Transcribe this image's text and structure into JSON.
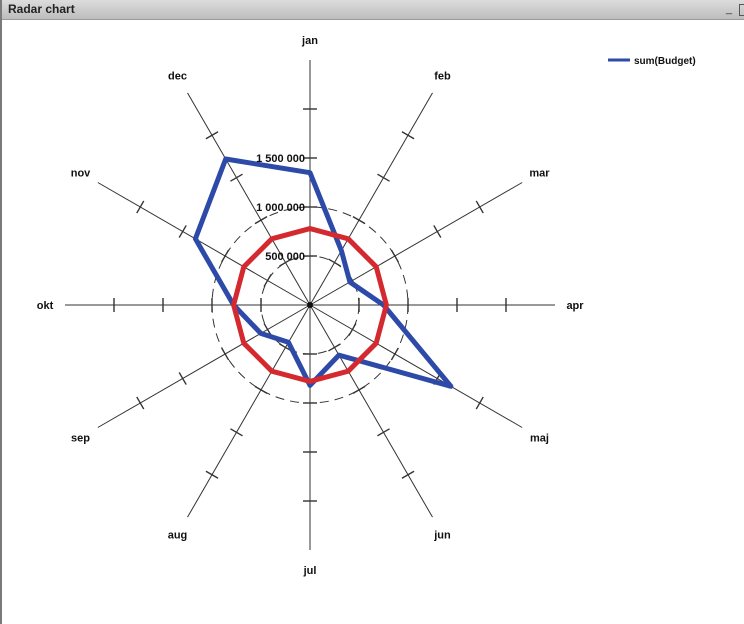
{
  "window": {
    "title": "Radar chart",
    "minimize_icon": "minimize-icon",
    "maximize_icon": "maximize-icon"
  },
  "chart_data": {
    "type": "radar",
    "categories": [
      "jan",
      "feb",
      "mar",
      "apr",
      "maj",
      "jun",
      "jul",
      "aug",
      "sep",
      "okt",
      "nov",
      "dec"
    ],
    "rlim": [
      0,
      2500000
    ],
    "tick_values": [
      500000,
      1000000,
      1500000
    ],
    "tick_labels": [
      "500 000",
      "1 000 000",
      "1 500 000"
    ],
    "grid": true,
    "legend_position": "top-right",
    "series": [
      {
        "name": "sum(Budget)",
        "color": "#2e4aa8",
        "values": [
          1350000,
          640000,
          470000,
          750000,
          1660000,
          590000,
          820000,
          440000,
          580000,
          780000,
          1350000,
          1720000
        ]
      },
      {
        "color": "#d42a2f",
        "values": [
          780000,
          780000,
          780000,
          780000,
          780000,
          780000,
          780000,
          780000,
          780000,
          780000,
          780000,
          780000
        ]
      }
    ]
  }
}
